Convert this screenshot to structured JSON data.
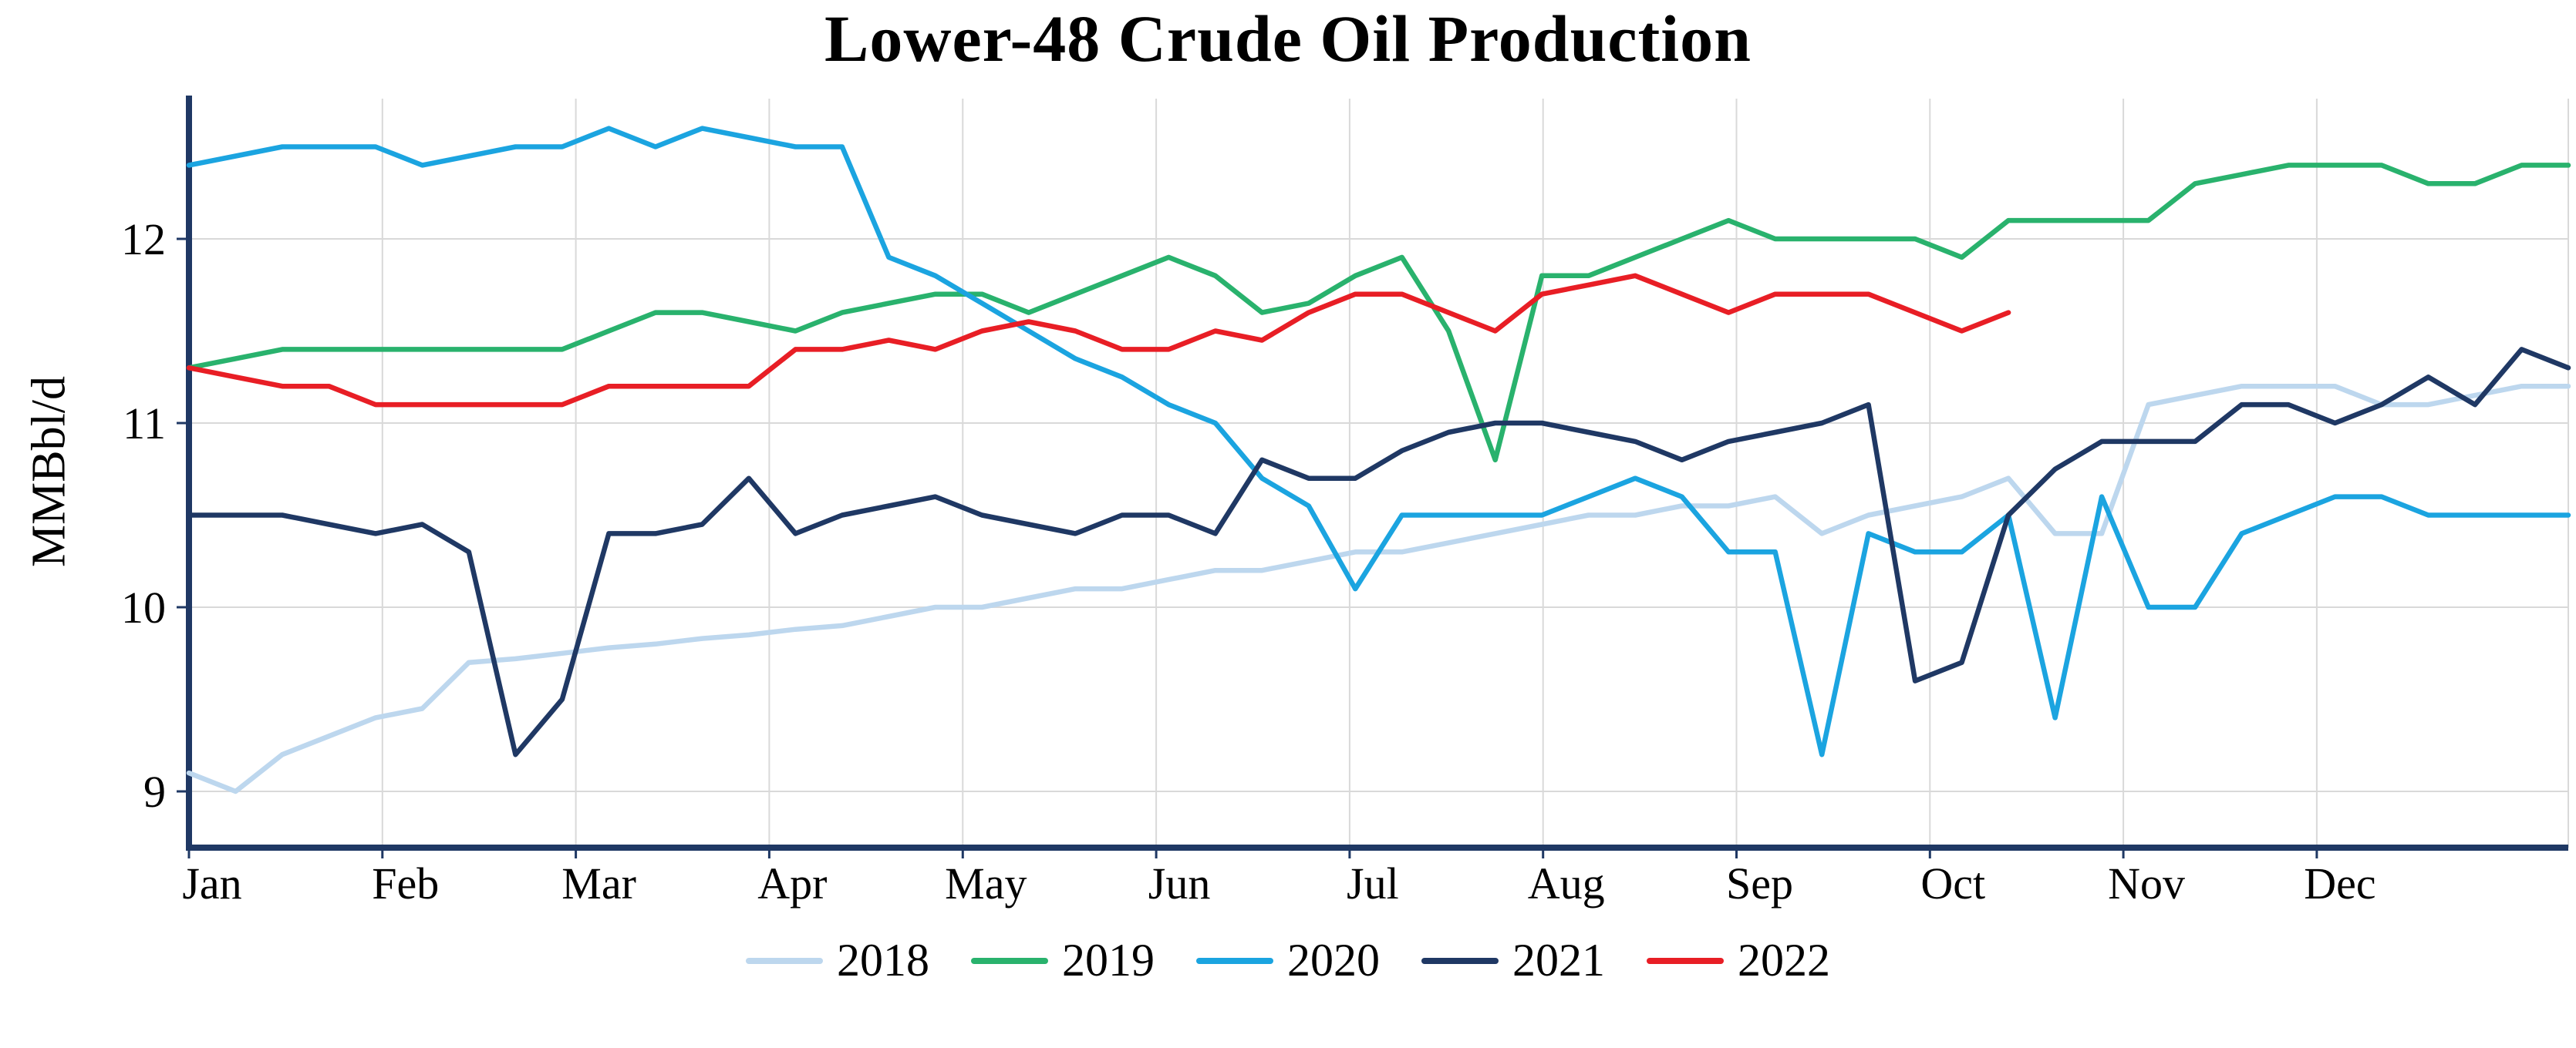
{
  "chart_data": {
    "type": "line",
    "title": "Lower-48 Crude Oil Production",
    "xlabel": "",
    "ylabel": "MMBbl/d",
    "x_tick_labels": [
      "Jan",
      "Feb",
      "Mar",
      "Apr",
      "May",
      "Jun",
      "Jul",
      "Aug",
      "Sep",
      "Oct",
      "Nov",
      "Dec"
    ],
    "x_unit": "weekly observations, Jan through Dec",
    "y_ticks": [
      9,
      10,
      11,
      12
    ],
    "y_range": [
      8.7,
      12.76
    ],
    "grid": true,
    "legend_position": "bottom",
    "axis_color": "#1f3864",
    "grid_color": "#d9d9d9",
    "series": [
      {
        "name": "2018",
        "color": "#bdd7ee",
        "values": [
          9.1,
          9.0,
          9.2,
          9.3,
          9.4,
          9.45,
          9.7,
          9.72,
          9.75,
          9.78,
          9.8,
          9.83,
          9.85,
          9.88,
          9.9,
          9.95,
          10.0,
          10.0,
          10.05,
          10.1,
          10.1,
          10.15,
          10.2,
          10.2,
          10.25,
          10.3,
          10.3,
          10.35,
          10.4,
          10.45,
          10.5,
          10.5,
          10.55,
          10.55,
          10.6,
          10.4,
          10.5,
          10.55,
          10.6,
          10.7,
          10.4,
          10.4,
          11.1,
          11.15,
          11.2,
          11.2,
          11.2,
          11.1,
          11.1,
          11.15,
          11.2,
          11.2
        ]
      },
      {
        "name": "2019",
        "color": "#29b26d",
        "values": [
          11.3,
          11.35,
          11.4,
          11.4,
          11.4,
          11.4,
          11.4,
          11.4,
          11.4,
          11.5,
          11.6,
          11.6,
          11.55,
          11.5,
          11.6,
          11.65,
          11.7,
          11.7,
          11.6,
          11.7,
          11.8,
          11.9,
          11.8,
          11.6,
          11.65,
          11.8,
          11.9,
          11.5,
          10.8,
          11.8,
          11.8,
          11.9,
          12.0,
          12.1,
          12.0,
          12.0,
          12.0,
          12.0,
          11.9,
          12.1,
          12.1,
          12.1,
          12.1,
          12.3,
          12.35,
          12.4,
          12.4,
          12.4,
          12.3,
          12.3,
          12.4,
          12.4
        ]
      },
      {
        "name": "2020",
        "color": "#1ba4e0",
        "values": [
          12.4,
          12.45,
          12.5,
          12.5,
          12.5,
          12.4,
          12.45,
          12.5,
          12.5,
          12.6,
          12.5,
          12.6,
          12.55,
          12.5,
          12.5,
          11.9,
          11.8,
          11.65,
          11.5,
          11.35,
          11.25,
          11.1,
          11.0,
          10.7,
          10.55,
          10.1,
          10.5,
          10.5,
          10.5,
          10.5,
          10.6,
          10.7,
          10.6,
          10.3,
          10.3,
          9.2,
          10.4,
          10.3,
          10.3,
          10.5,
          9.4,
          10.6,
          10.0,
          10.0,
          10.4,
          10.5,
          10.6,
          10.6,
          10.5,
          10.5,
          10.5,
          10.5
        ]
      },
      {
        "name": "2021",
        "color": "#1f3864",
        "values": [
          10.5,
          10.5,
          10.5,
          10.45,
          10.4,
          10.45,
          10.3,
          9.2,
          9.5,
          10.4,
          10.4,
          10.45,
          10.7,
          10.4,
          10.5,
          10.55,
          10.6,
          10.5,
          10.45,
          10.4,
          10.5,
          10.5,
          10.4,
          10.8,
          10.7,
          10.7,
          10.85,
          10.95,
          11.0,
          11.0,
          10.95,
          10.9,
          10.8,
          10.9,
          10.95,
          11.0,
          11.1,
          9.6,
          9.7,
          10.5,
          10.75,
          10.9,
          10.9,
          10.9,
          11.1,
          11.1,
          11.0,
          11.1,
          11.25,
          11.1,
          11.4,
          11.3
        ]
      },
      {
        "name": "2022",
        "color": "#e81e25",
        "values": [
          11.3,
          11.25,
          11.2,
          11.2,
          11.1,
          11.1,
          11.1,
          11.1,
          11.1,
          11.2,
          11.2,
          11.2,
          11.2,
          11.4,
          11.4,
          11.45,
          11.4,
          11.5,
          11.55,
          11.5,
          11.4,
          11.4,
          11.5,
          11.45,
          11.6,
          11.7,
          11.7,
          11.6,
          11.5,
          11.7,
          11.75,
          11.8,
          11.7,
          11.6,
          11.7,
          11.7,
          11.7,
          11.6,
          11.5,
          11.6
        ]
      }
    ]
  }
}
